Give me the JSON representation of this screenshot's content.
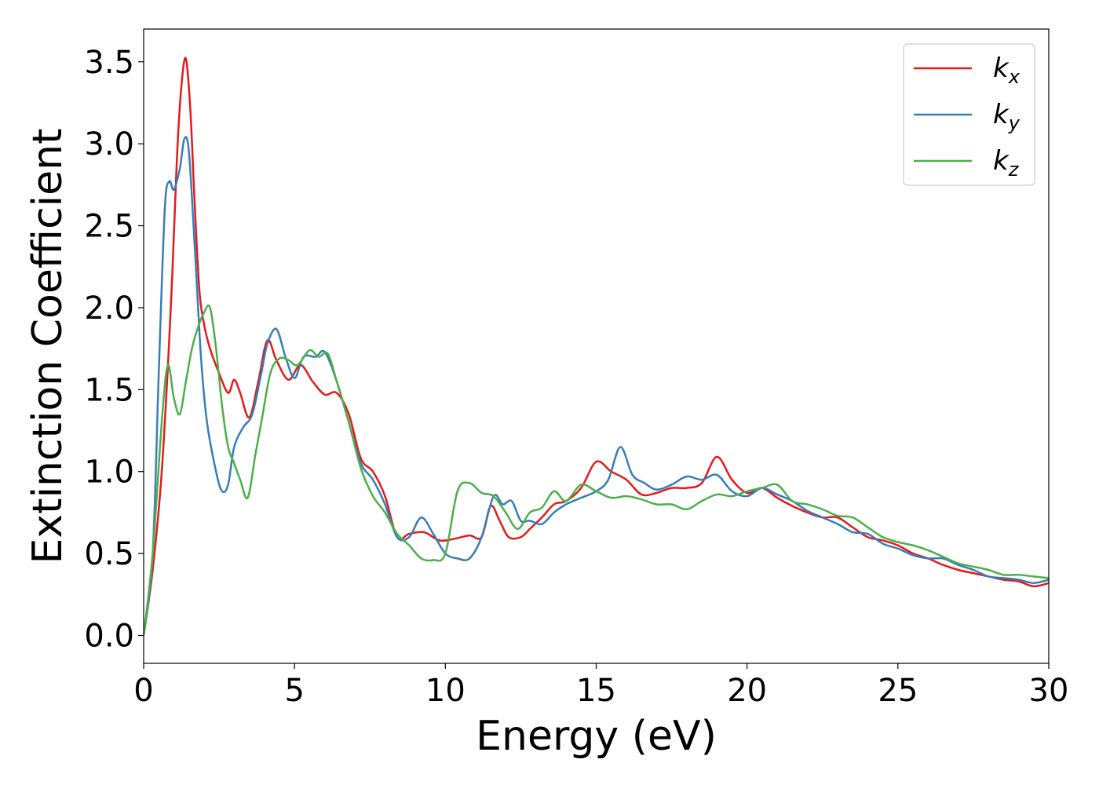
{
  "chart_data": {
    "type": "line",
    "title": "",
    "xlabel": "Energy (eV)",
    "ylabel": "Extinction Coefficient",
    "xlim": [
      0,
      30
    ],
    "ylim": [
      -0.17,
      3.7
    ],
    "xticks": [
      0,
      5,
      10,
      15,
      20,
      25,
      30
    ],
    "xtick_labels": [
      "0",
      "5",
      "10",
      "15",
      "20",
      "25",
      "30"
    ],
    "yticks": [
      0.0,
      0.5,
      1.0,
      1.5,
      2.0,
      2.5,
      3.0,
      3.5
    ],
    "ytick_labels": [
      "0.0",
      "0.5",
      "1.0",
      "1.5",
      "2.0",
      "2.5",
      "3.0",
      "3.5"
    ],
    "grid": false,
    "legend_position": "top-right",
    "series": [
      {
        "name": "kx",
        "label_base": "k",
        "label_sub": "x",
        "color": "#e41a1c",
        "x": [
          0,
          0.3,
          0.6,
          0.9,
          1.1,
          1.25,
          1.4,
          1.55,
          1.7,
          1.85,
          2.0,
          2.2,
          2.5,
          2.8,
          3.0,
          3.2,
          3.5,
          3.8,
          4.1,
          4.4,
          4.8,
          5.2,
          5.6,
          6.0,
          6.4,
          6.8,
          7.2,
          7.6,
          8.0,
          8.4,
          8.8,
          9.3,
          9.8,
          10.3,
          10.8,
          11.2,
          11.5,
          11.8,
          12.1,
          12.5,
          12.8,
          13.2,
          13.6,
          14.0,
          14.5,
          15.0,
          15.5,
          16.0,
          16.5,
          17.0,
          17.5,
          18.0,
          18.5,
          19.0,
          19.5,
          20.0,
          20.5,
          21.0,
          21.5,
          22.0,
          22.5,
          23.0,
          23.5,
          24.0,
          24.5,
          25.0,
          25.5,
          26.0,
          26.5,
          27.0,
          27.5,
          28.0,
          28.5,
          29.0,
          29.5,
          30.0
        ],
        "y": [
          0.0,
          0.4,
          1.0,
          2.0,
          2.9,
          3.35,
          3.52,
          3.2,
          2.6,
          2.1,
          1.9,
          1.75,
          1.6,
          1.48,
          1.56,
          1.48,
          1.33,
          1.55,
          1.8,
          1.68,
          1.56,
          1.65,
          1.55,
          1.47,
          1.48,
          1.35,
          1.08,
          1.0,
          0.85,
          0.6,
          0.62,
          0.63,
          0.58,
          0.59,
          0.61,
          0.6,
          0.79,
          0.7,
          0.6,
          0.6,
          0.65,
          0.72,
          0.8,
          0.82,
          0.9,
          1.06,
          1.0,
          0.95,
          0.86,
          0.87,
          0.9,
          0.9,
          0.93,
          1.09,
          0.95,
          0.87,
          0.9,
          0.84,
          0.79,
          0.75,
          0.72,
          0.72,
          0.66,
          0.6,
          0.58,
          0.55,
          0.5,
          0.47,
          0.43,
          0.4,
          0.38,
          0.36,
          0.34,
          0.33,
          0.3,
          0.32
        ]
      },
      {
        "name": "ky",
        "label_base": "k",
        "label_sub": "y",
        "color": "#377eb8",
        "x": [
          0,
          0.3,
          0.5,
          0.7,
          0.85,
          1.0,
          1.2,
          1.35,
          1.5,
          1.7,
          1.9,
          2.1,
          2.4,
          2.6,
          2.8,
          3.0,
          3.3,
          3.6,
          3.9,
          4.1,
          4.4,
          4.7,
          5.0,
          5.3,
          5.7,
          6.0,
          6.4,
          6.8,
          7.2,
          7.6,
          8.0,
          8.4,
          8.8,
          9.2,
          9.6,
          10.0,
          10.4,
          10.8,
          11.2,
          11.6,
          11.9,
          12.2,
          12.5,
          12.8,
          13.2,
          13.6,
          14.0,
          14.5,
          15.0,
          15.4,
          15.8,
          16.2,
          16.6,
          17.0,
          17.5,
          18.0,
          18.5,
          19.0,
          19.5,
          20.0,
          20.5,
          21.0,
          21.5,
          22.0,
          22.5,
          23.0,
          23.5,
          24.0,
          24.5,
          25.0,
          25.5,
          26.0,
          26.5,
          27.0,
          27.5,
          28.0,
          28.5,
          29.0,
          29.5,
          30.0
        ],
        "y": [
          0.0,
          0.5,
          1.6,
          2.6,
          2.77,
          2.72,
          2.85,
          3.03,
          2.95,
          2.35,
          1.7,
          1.3,
          1.0,
          0.88,
          0.92,
          1.15,
          1.27,
          1.35,
          1.6,
          1.78,
          1.87,
          1.7,
          1.57,
          1.7,
          1.7,
          1.73,
          1.55,
          1.3,
          1.05,
          0.95,
          0.8,
          0.6,
          0.6,
          0.72,
          0.62,
          0.5,
          0.47,
          0.47,
          0.6,
          0.85,
          0.8,
          0.82,
          0.7,
          0.7,
          0.68,
          0.75,
          0.8,
          0.84,
          0.88,
          0.95,
          1.15,
          0.98,
          0.93,
          0.89,
          0.92,
          0.97,
          0.95,
          0.98,
          0.88,
          0.85,
          0.9,
          0.86,
          0.82,
          0.76,
          0.72,
          0.68,
          0.63,
          0.62,
          0.56,
          0.53,
          0.49,
          0.47,
          0.47,
          0.43,
          0.4,
          0.36,
          0.35,
          0.34,
          0.32,
          0.34
        ]
      },
      {
        "name": "kz",
        "label_base": "k",
        "label_sub": "z",
        "color": "#4daf4a",
        "x": [
          0,
          0.3,
          0.6,
          0.8,
          1.0,
          1.2,
          1.4,
          1.6,
          1.8,
          2.0,
          2.2,
          2.4,
          2.6,
          2.8,
          3.0,
          3.2,
          3.45,
          3.7,
          3.9,
          4.2,
          4.5,
          4.8,
          5.1,
          5.5,
          5.8,
          6.1,
          6.4,
          6.8,
          7.2,
          7.6,
          8.0,
          8.4,
          8.8,
          9.2,
          9.6,
          10.0,
          10.4,
          10.8,
          11.2,
          11.6,
          12.0,
          12.4,
          12.8,
          13.2,
          13.6,
          14.0,
          14.5,
          15.0,
          15.5,
          16.0,
          16.5,
          17.0,
          17.5,
          18.0,
          18.5,
          19.0,
          19.5,
          20.0,
          20.5,
          21.0,
          21.5,
          22.0,
          22.5,
          23.0,
          23.5,
          24.0,
          24.5,
          25.0,
          25.5,
          26.0,
          26.5,
          27.0,
          27.5,
          28.0,
          28.5,
          29.0,
          29.5,
          30.0
        ],
        "y": [
          0.0,
          0.5,
          1.3,
          1.65,
          1.45,
          1.35,
          1.55,
          1.75,
          1.88,
          1.97,
          2.0,
          1.75,
          1.4,
          1.15,
          1.05,
          0.95,
          0.84,
          1.1,
          1.3,
          1.6,
          1.69,
          1.68,
          1.65,
          1.74,
          1.7,
          1.72,
          1.55,
          1.3,
          1.02,
          0.85,
          0.75,
          0.62,
          0.55,
          0.47,
          0.46,
          0.5,
          0.88,
          0.93,
          0.87,
          0.85,
          0.75,
          0.65,
          0.75,
          0.78,
          0.88,
          0.82,
          0.92,
          0.88,
          0.84,
          0.85,
          0.83,
          0.8,
          0.8,
          0.77,
          0.82,
          0.86,
          0.85,
          0.88,
          0.9,
          0.92,
          0.82,
          0.8,
          0.77,
          0.73,
          0.72,
          0.66,
          0.6,
          0.57,
          0.55,
          0.52,
          0.48,
          0.44,
          0.42,
          0.4,
          0.37,
          0.37,
          0.36,
          0.35
        ]
      }
    ]
  }
}
